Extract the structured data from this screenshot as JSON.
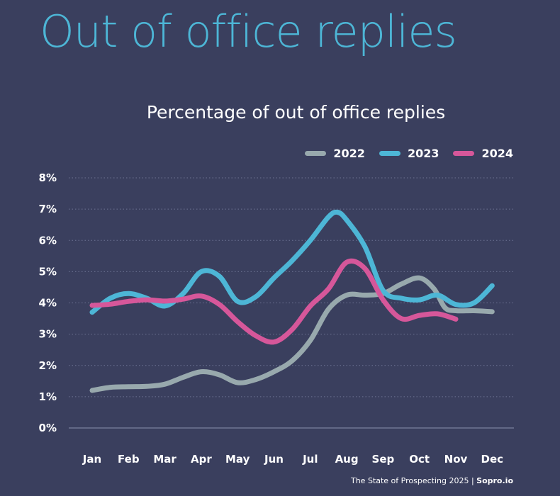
{
  "header": {
    "title": "Out of office replies"
  },
  "footer": {
    "source": "The State of Prospecting 2025 | ",
    "brand": "Sopro.io"
  },
  "chart_data": {
    "type": "line",
    "title": "Percentage of out of office replies",
    "xlabel": "",
    "ylabel": "",
    "categories": [
      "Jan",
      "Feb",
      "Mar",
      "Apr",
      "May",
      "Jun",
      "Jul",
      "Aug",
      "Sep",
      "Oct",
      "Nov",
      "Dec"
    ],
    "y_ticks": [
      "0%",
      "1%",
      "2%",
      "3%",
      "4%",
      "5%",
      "6%",
      "7%",
      "8%"
    ],
    "ylim": [
      0,
      8
    ],
    "grid": "horizontal dotted",
    "legend_position": "top-right",
    "series": [
      {
        "name": "2022",
        "color": "#98a9ad",
        "x": [
          0,
          0.5,
          1,
          1.5,
          2,
          2.5,
          3,
          3.5,
          4,
          4.5,
          5,
          5.5,
          6,
          6.5,
          7,
          7.5,
          8,
          8.5,
          9,
          9.4,
          9.7,
          10,
          10.5,
          11
        ],
        "values": [
          1.2,
          1.3,
          1.32,
          1.33,
          1.4,
          1.62,
          1.8,
          1.7,
          1.45,
          1.55,
          1.8,
          2.15,
          2.8,
          3.8,
          4.25,
          4.25,
          4.3,
          4.6,
          4.8,
          4.45,
          3.85,
          3.75,
          3.75,
          3.72
        ]
      },
      {
        "name": "2023",
        "color": "#4db6d6",
        "x": [
          0,
          0.5,
          1,
          1.5,
          2,
          2.5,
          3,
          3.5,
          4,
          4.5,
          5,
          5.5,
          6,
          6.5,
          6.75,
          7,
          7.5,
          8,
          8.5,
          9,
          9.5,
          10,
          10.5,
          11
        ],
        "values": [
          3.7,
          4.15,
          4.3,
          4.15,
          3.9,
          4.3,
          5.0,
          4.85,
          4.05,
          4.2,
          4.8,
          5.35,
          6.0,
          6.75,
          6.9,
          6.65,
          5.8,
          4.4,
          4.15,
          4.1,
          4.25,
          3.95,
          4.0,
          4.55
        ]
      },
      {
        "name": "2024",
        "color": "#d6579a",
        "x": [
          0,
          0.5,
          1,
          1.5,
          2,
          2.5,
          3,
          3.5,
          4,
          4.5,
          5,
          5.5,
          6,
          6.5,
          7,
          7.5,
          8,
          8.5,
          9,
          9.5,
          10
        ],
        "values": [
          3.92,
          3.96,
          4.05,
          4.1,
          4.06,
          4.12,
          4.22,
          3.95,
          3.4,
          2.95,
          2.75,
          3.15,
          3.9,
          4.45,
          5.3,
          5.1,
          4.1,
          3.5,
          3.6,
          3.65,
          3.48
        ]
      }
    ]
  }
}
